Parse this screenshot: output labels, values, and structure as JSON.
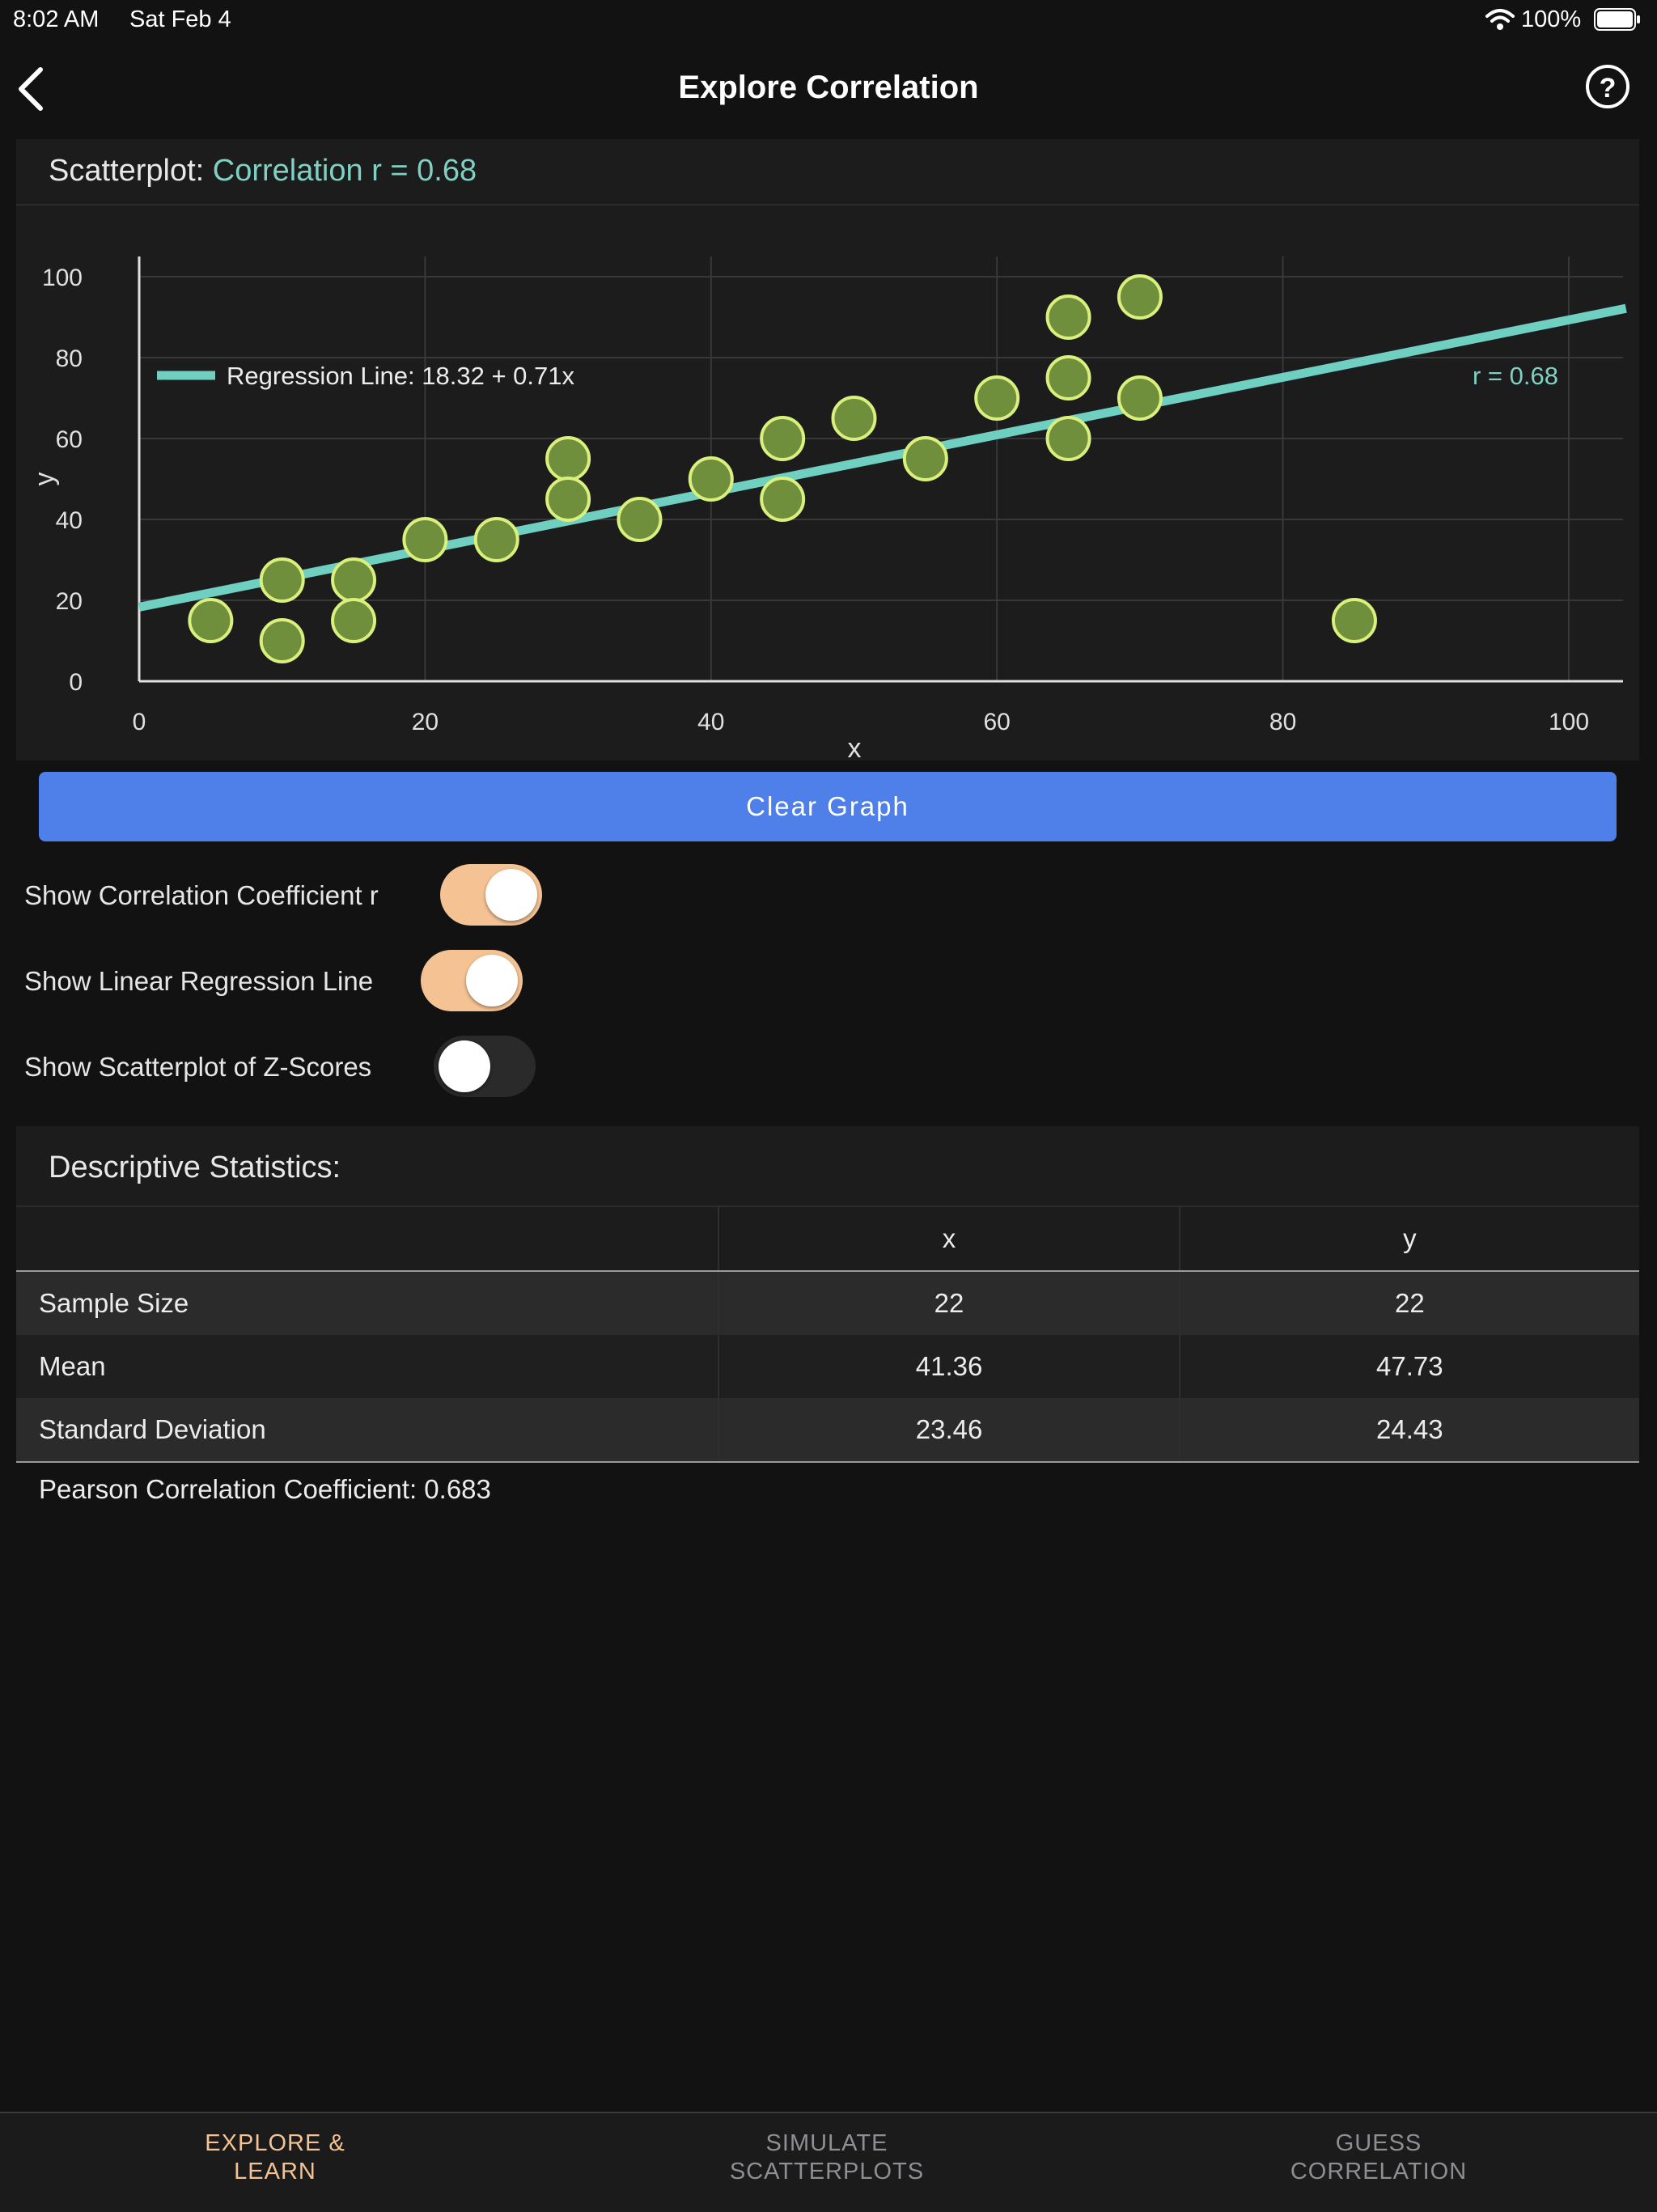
{
  "status": {
    "time": "8:02 AM",
    "date": "Sat Feb 4",
    "battery": "100%"
  },
  "nav": {
    "title": "Explore Correlation",
    "back_icon": "chevron-left-icon",
    "help_icon": "question-circle-icon"
  },
  "chart_header": {
    "label": "Scatterplot:",
    "correlation": "Correlation r = 0.68"
  },
  "chart_data": {
    "type": "scatter",
    "x": [
      5,
      10,
      10,
      15,
      15,
      20,
      25,
      30,
      30,
      35,
      40,
      45,
      45,
      50,
      55,
      60,
      65,
      65,
      65,
      70,
      70,
      85
    ],
    "y": [
      15,
      25,
      10,
      25,
      15,
      35,
      35,
      55,
      45,
      40,
      50,
      60,
      45,
      65,
      55,
      70,
      90,
      75,
      60,
      95,
      70,
      15
    ],
    "regression": {
      "intercept": 18.32,
      "slope": 0.71,
      "label": "Regression Line: 18.32 + 0.71x"
    },
    "r_label": "r = 0.68",
    "xlabel": "x",
    "ylabel": "y",
    "xlim": [
      0,
      104
    ],
    "ylim": [
      0,
      105
    ],
    "xticks": [
      0,
      20,
      40,
      60,
      80,
      100
    ],
    "yticks": [
      0,
      20,
      40,
      60,
      80,
      100
    ],
    "grid": true,
    "legend_position": "top-left",
    "colors": {
      "point_fill": "#6f8f3c",
      "point_stroke": "#d9f07c",
      "line": "#6fcfc0",
      "grid": "#383838",
      "axis": "#e0e0e0"
    }
  },
  "clear_button": "Clear Graph",
  "toggles": [
    {
      "label": "Show Correlation Coefficient r",
      "on": true
    },
    {
      "label": "Show Linear Regression Line",
      "on": true
    },
    {
      "label": "Show Scatterplot of Z-Scores",
      "on": false
    }
  ],
  "stats": {
    "title": "Descriptive Statistics:",
    "columns": [
      "",
      "x",
      "y"
    ],
    "rows": [
      [
        "Sample Size",
        "22",
        "22"
      ],
      [
        "Mean",
        "41.36",
        "47.73"
      ],
      [
        "Standard Deviation",
        "23.46",
        "24.43"
      ]
    ],
    "pearson": "Pearson Correlation Coefficient: 0.683"
  },
  "tabs": [
    {
      "line1": "EXPLORE &",
      "line2": "LEARN",
      "active": true
    },
    {
      "line1": "SIMULATE",
      "line2": "SCATTERPLOTS",
      "active": false
    },
    {
      "line1": "GUESS",
      "line2": "CORRELATION",
      "active": false
    }
  ],
  "colors": {
    "accent": "#f5c393",
    "button": "#4f7fe8",
    "correlation_text": "#7fd1c4"
  }
}
